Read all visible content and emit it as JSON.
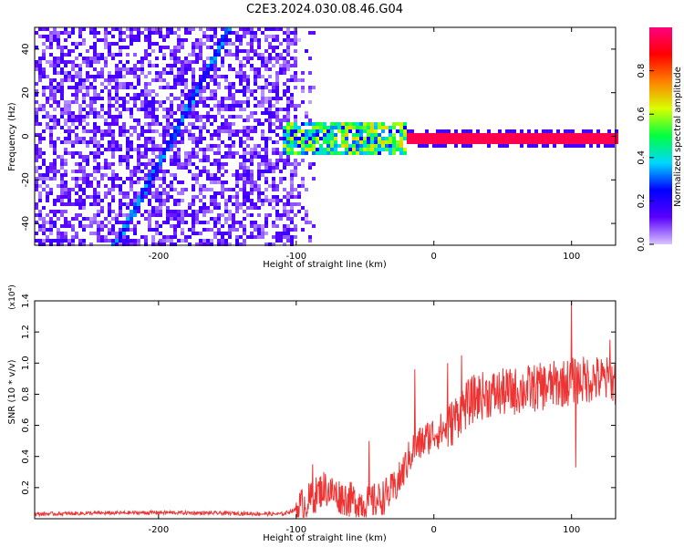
{
  "title": "C2E3.2024.030.08.46.G04",
  "chart_data": [
    {
      "type": "heatmap",
      "xlabel": "Height of straight line (km)",
      "ylabel": "Frequency (Hz)",
      "xlim": [
        -290,
        132
      ],
      "ylim": [
        -50,
        50
      ],
      "xticks": [
        -200,
        -100,
        0,
        100
      ],
      "yticks": [
        -40,
        -20,
        0,
        20,
        40
      ],
      "colorbar": {
        "label": "Normalized spectral amplitude",
        "range": [
          0.0,
          1.0
        ],
        "ticks": [
          0.0,
          0.2,
          0.4,
          0.6,
          0.8
        ],
        "colormap": [
          "#d8c4ff",
          "#5a00ff",
          "#0000ff",
          "#00d8ff",
          "#00ff40",
          "#d8ff00",
          "#ff8000",
          "#ff0000",
          "#ff0080"
        ]
      },
      "features": {
        "noise_region_x": [
          -290,
          -100
        ],
        "noise_amplitude": 0.15,
        "oblique_line": {
          "x": [
            -233,
            -150
          ],
          "freq": [
            -50,
            50
          ],
          "amplitude": 0.3
        },
        "zero_line_x": [
          -20,
          132
        ],
        "zero_line_amplitude": 0.95,
        "broadband_region_x": [
          -110,
          -20
        ],
        "broadband_amplitude": 0.45
      }
    },
    {
      "type": "line",
      "xlabel": "Height of straight line (km)",
      "ylabel": "SNR (10 * v/v)",
      "scale_label": "(x10⁴)",
      "xlim": [
        -290,
        132
      ],
      "ylim": [
        0,
        1.4
      ],
      "xticks": [
        -200,
        -100,
        0,
        100
      ],
      "yticks": [
        0.2,
        0.4,
        0.6,
        0.8,
        1.0,
        1.2,
        1.4
      ],
      "ytick_labels": [
        "0.2",
        "0.4",
        "0.6",
        "0.8",
        "1.0",
        "1.2",
        "1.4"
      ],
      "series": [
        {
          "color": "#ee3333",
          "x": [
            -290,
            -250,
            -200,
            -150,
            -110,
            -100,
            -90,
            -80,
            -70,
            -60,
            -50,
            -40,
            -30,
            -25,
            -20,
            -15,
            -10,
            -5,
            0,
            10,
            20,
            30,
            40,
            60,
            80,
            100,
            115,
            132
          ],
          "y": [
            0.03,
            0.035,
            0.04,
            0.035,
            0.03,
            0.06,
            0.12,
            0.2,
            0.15,
            0.12,
            0.1,
            0.12,
            0.18,
            0.25,
            0.35,
            0.45,
            0.48,
            0.52,
            0.55,
            0.58,
            0.7,
            0.78,
            0.8,
            0.82,
            0.85,
            0.88,
            0.9,
            0.88
          ],
          "spikes": [
            {
              "x": -88,
              "y": 0.35
            },
            {
              "x": -47,
              "y": 0.5
            },
            {
              "x": -14,
              "y": 0.96
            },
            {
              "x": 10,
              "y": 1.0
            },
            {
              "x": 20,
              "y": 1.05
            },
            {
              "x": 100,
              "y": 1.4
            },
            {
              "x": 103,
              "y": 0.33
            },
            {
              "x": 128,
              "y": 1.15
            }
          ]
        }
      ]
    }
  ]
}
